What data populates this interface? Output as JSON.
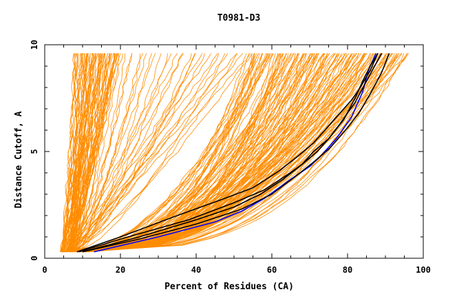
{
  "chart_data": {
    "type": "line",
    "title": "T0981-D3",
    "xlabel": "Percent of Residues (CA)",
    "ylabel": "Distance Cutoff, A",
    "xlim": [
      0,
      100
    ],
    "ylim": [
      0,
      10
    ],
    "xticks": [
      0,
      20,
      40,
      60,
      80,
      100
    ],
    "yticks": [
      0,
      5,
      10
    ],
    "colors": {
      "model_curves": "#ff8c00",
      "highlight_blue": "#0000ff",
      "highlight_black": "#000000"
    },
    "series": [
      {
        "color": "blue",
        "x": [
          13,
          30,
          45,
          52,
          58,
          65,
          70,
          73,
          77,
          81,
          84,
          85.5,
          87.5
        ],
        "y": [
          0.3,
          1.0,
          1.7,
          2.2,
          2.8,
          3.7,
          4.3,
          4.8,
          5.6,
          6.6,
          7.8,
          8.8,
          9.6
        ]
      },
      {
        "color": "black",
        "x": [
          10,
          25,
          40,
          50,
          57,
          63,
          68,
          72,
          75,
          78,
          82,
          85,
          89
        ],
        "y": [
          0.3,
          1.0,
          1.8,
          2.4,
          3.0,
          3.7,
          4.4,
          5.0,
          5.6,
          6.3,
          7.3,
          8.3,
          9.6
        ]
      },
      {
        "color": "black",
        "x": [
          9,
          22,
          38,
          50,
          58,
          64,
          68,
          71,
          75,
          79,
          82,
          84,
          86,
          88
        ],
        "y": [
          0.3,
          1.0,
          1.8,
          2.6,
          3.2,
          3.9,
          4.4,
          5.0,
          5.6,
          6.5,
          7.5,
          8.3,
          9.0,
          9.6
        ]
      },
      {
        "color": "black",
        "x": [
          8.5,
          20,
          35,
          46,
          55,
          62,
          67,
          71,
          74,
          78,
          81,
          83,
          86,
          88
        ],
        "y": [
          0.3,
          1.0,
          2.0,
          2.7,
          3.3,
          4.1,
          4.8,
          5.4,
          6.0,
          6.8,
          7.4,
          7.9,
          8.8,
          9.6
        ]
      },
      {
        "color": "black",
        "x": [
          10,
          25,
          40,
          52,
          60,
          66,
          71,
          75,
          79,
          83,
          86,
          89,
          91
        ],
        "y": [
          0.3,
          0.9,
          1.6,
          2.3,
          3.0,
          3.8,
          4.5,
          5.1,
          5.9,
          6.8,
          7.7,
          8.7,
          9.6
        ]
      }
    ],
    "groups": [
      {
        "name": "steep_left",
        "color": "orange",
        "count": 70,
        "start_x": [
          4,
          8
        ],
        "end_x": [
          8,
          20
        ],
        "y_end": 9.6
      },
      {
        "name": "middle_left",
        "color": "orange",
        "count": 30,
        "start_x": [
          5,
          9
        ],
        "end_x": [
          20,
          55
        ],
        "y_end": 9.6
      },
      {
        "name": "right_group",
        "color": "orange",
        "count": 140,
        "start_x": [
          4,
          12
        ],
        "end_x": [
          54,
          96
        ],
        "y_end": 9.6
      }
    ]
  }
}
